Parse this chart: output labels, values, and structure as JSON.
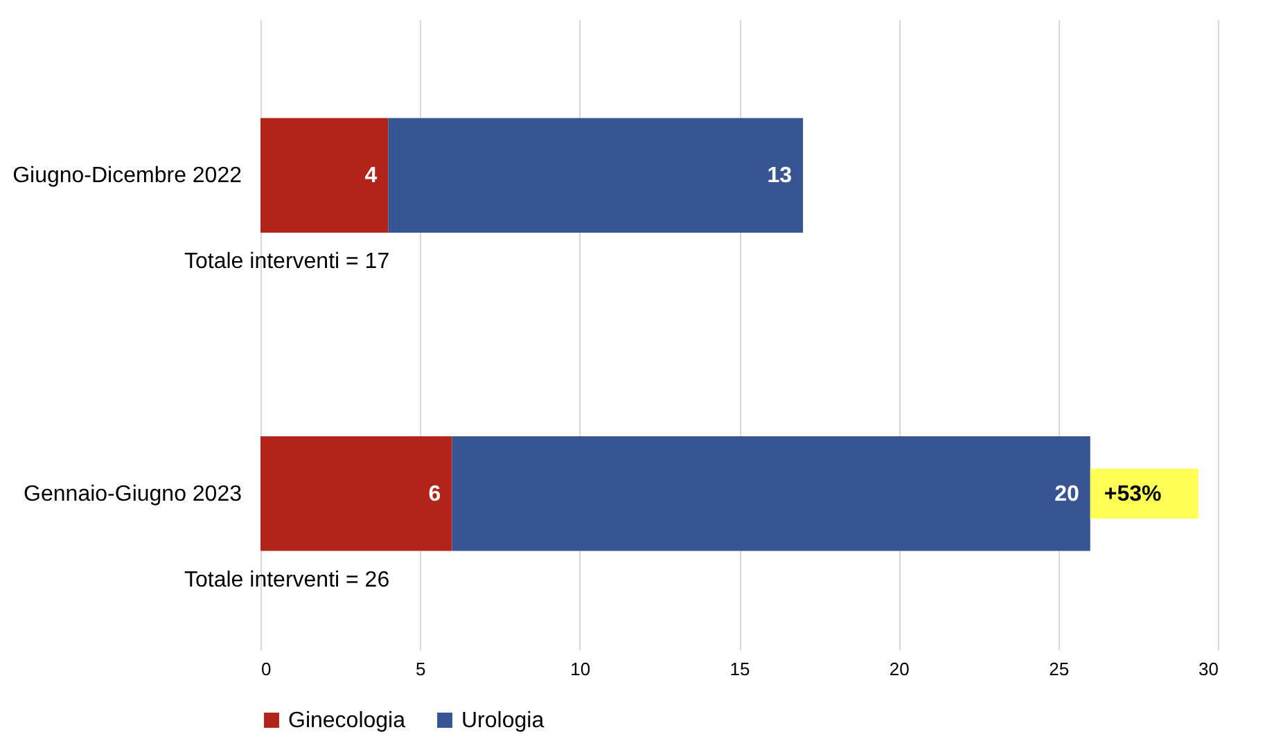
{
  "chart_data": {
    "type": "bar",
    "orientation": "horizontal",
    "stacked": true,
    "categories": [
      "Giugno-Dicembre 2022",
      "Gennaio-Giugno 2023"
    ],
    "series": [
      {
        "name": "Ginecologia",
        "color": "#b2241a",
        "values": [
          4,
          6
        ]
      },
      {
        "name": "Urologia",
        "color": "#375592",
        "values": [
          13,
          20
        ]
      }
    ],
    "xlim": [
      0,
      30
    ],
    "xticks": [
      0,
      5,
      10,
      15,
      20,
      25,
      30
    ],
    "grid": "x",
    "legend": "bottom",
    "data_labels": true,
    "totals": [
      "Totale interventi = 17",
      "Totale interventi = 26"
    ],
    "annotations": [
      {
        "text": "+53%",
        "x": 26,
        "y": "Gennaio-Giugno 2023"
      }
    ]
  }
}
